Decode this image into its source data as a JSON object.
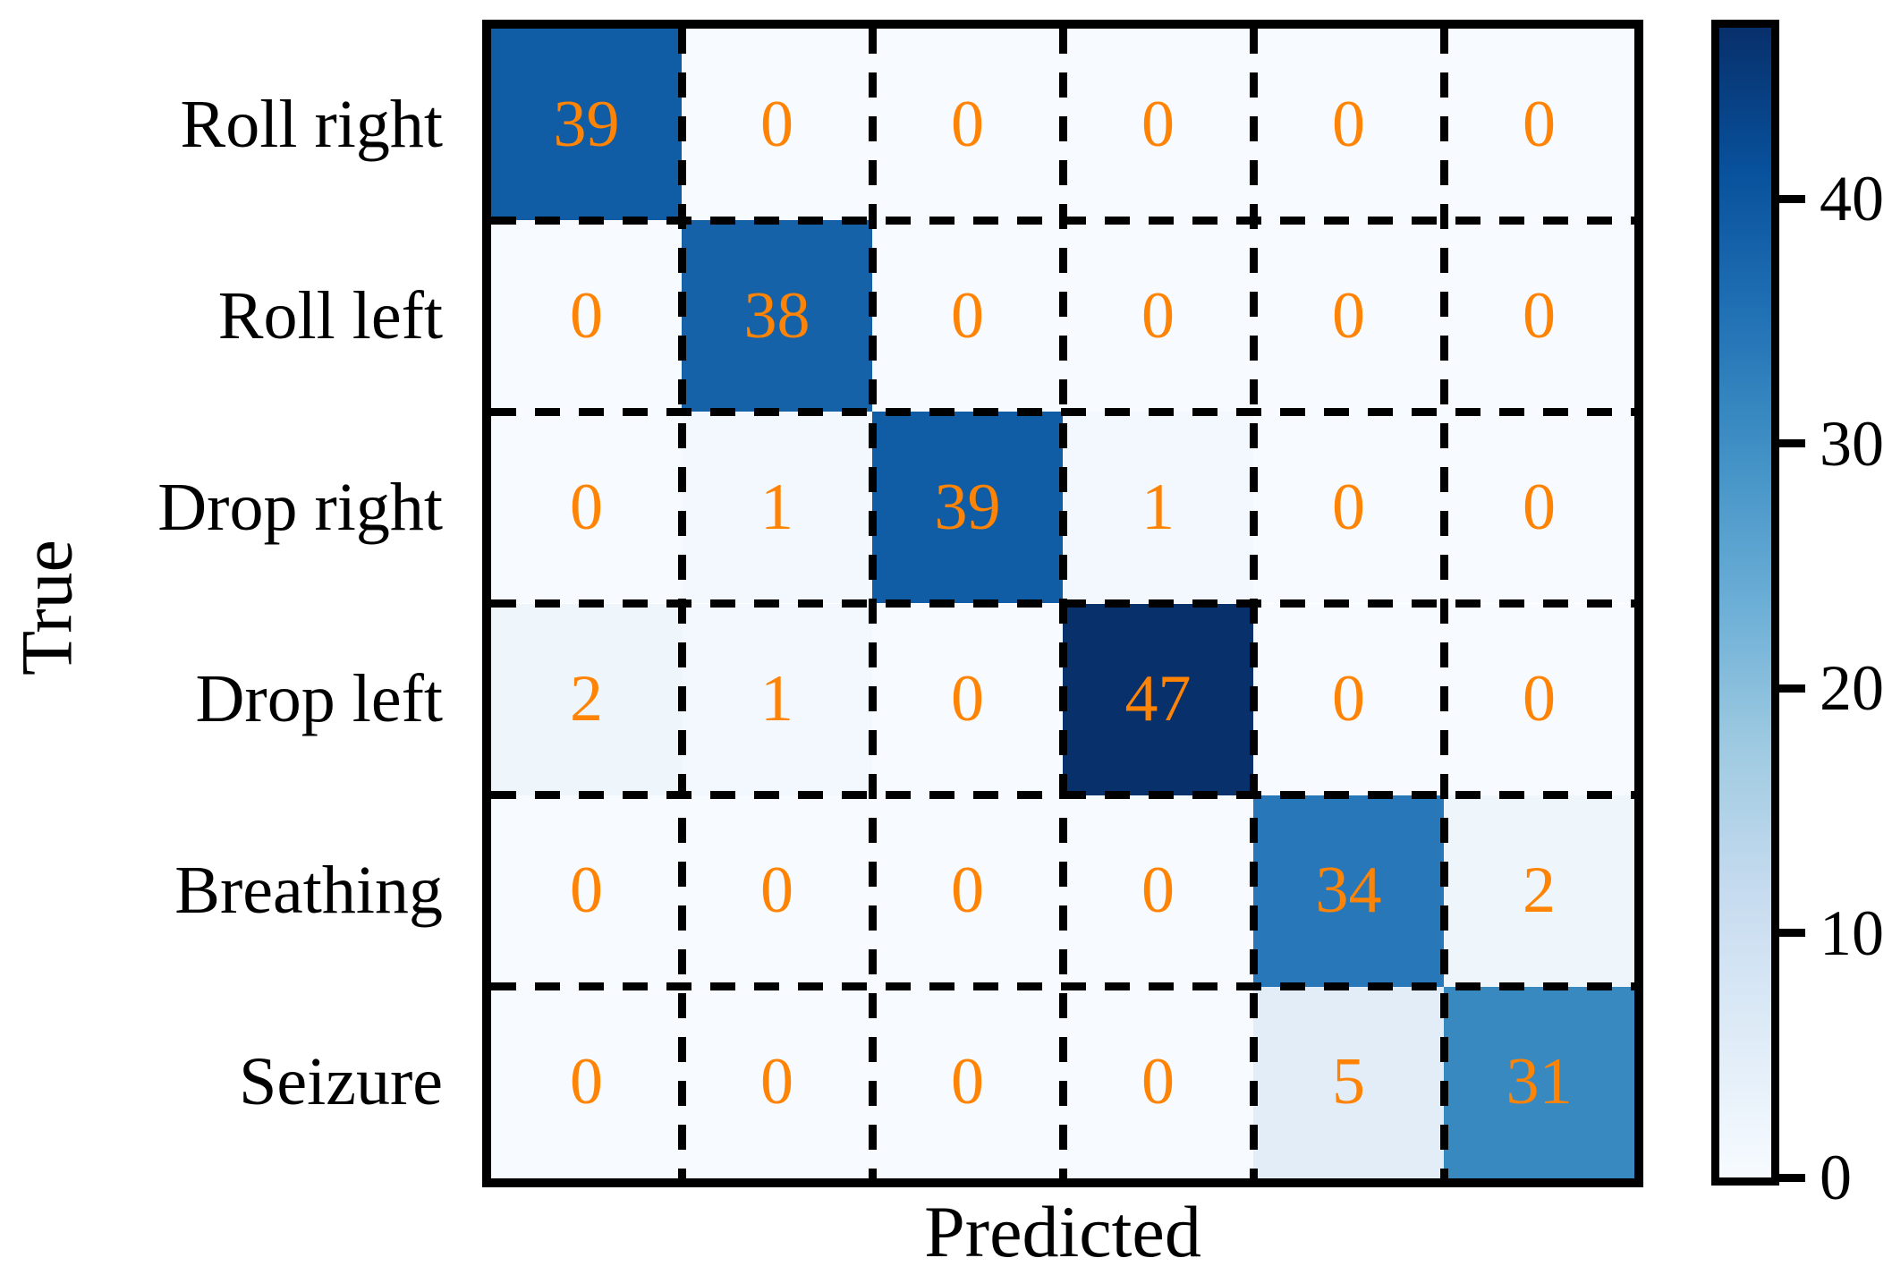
{
  "figure": {
    "background": "#ffffff"
  },
  "chart_data": {
    "type": "heatmap",
    "title": "",
    "xlabel": "Predicted",
    "ylabel": "True",
    "row_labels": [
      "Roll right",
      "Roll left",
      "Drop right",
      "Drop left",
      "Breathing",
      "Seizure"
    ],
    "col_labels": [],
    "values": [
      [
        39,
        0,
        0,
        0,
        0,
        0
      ],
      [
        0,
        38,
        0,
        0,
        0,
        0
      ],
      [
        0,
        1,
        39,
        1,
        0,
        0
      ],
      [
        2,
        1,
        0,
        47,
        0,
        0
      ],
      [
        0,
        0,
        0,
        0,
        34,
        2
      ],
      [
        0,
        0,
        0,
        0,
        5,
        31
      ]
    ],
    "vmin": 0,
    "vmax": 47,
    "colormap": "Blues",
    "colormap_stops": [
      "#f7fbff",
      "#deebf7",
      "#c6dbef",
      "#9ecae1",
      "#6baed6",
      "#4292c6",
      "#2171b5",
      "#08519c",
      "#08306b"
    ],
    "annotation_color": "#ff8405",
    "grid_style": "dashed",
    "grid_color": "#000000",
    "border_color": "#000000",
    "legend_position": "right",
    "colorbar": {
      "ticks": [
        "0",
        "10",
        "20",
        "30",
        "40"
      ],
      "tick_values": [
        0,
        10,
        20,
        30,
        40
      ]
    }
  }
}
